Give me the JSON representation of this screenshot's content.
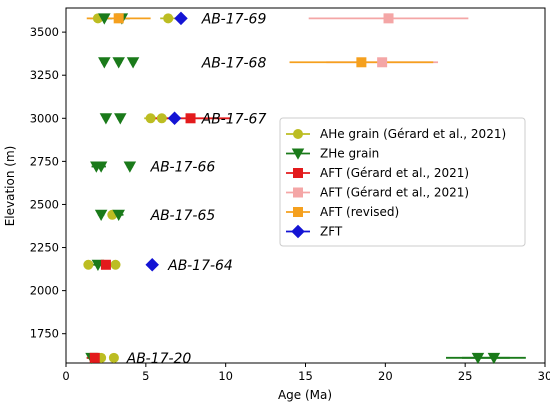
{
  "chart_data": {
    "type": "scatter",
    "xlabel": "Age (Ma)",
    "ylabel": "Elevation (m)",
    "xlim": [
      0,
      30
    ],
    "ylim": [
      1580,
      3640
    ],
    "xticks": [
      0,
      5,
      10,
      15,
      20,
      25,
      30
    ],
    "yticks": [
      1750,
      2000,
      2250,
      2500,
      2750,
      3000,
      3250,
      3500
    ],
    "grid": false,
    "legend_position": "right",
    "samples": [
      {
        "name": "AB-17-69",
        "elevation": 3580
      },
      {
        "name": "AB-17-68",
        "elevation": 3325
      },
      {
        "name": "AB-17-67",
        "elevation": 3000
      },
      {
        "name": "AB-17-66",
        "elevation": 2720
      },
      {
        "name": "AB-17-65",
        "elevation": 2440
      },
      {
        "name": "AB-17-64",
        "elevation": 2150
      },
      {
        "name": "AB-17-20",
        "elevation": 1610
      }
    ],
    "series": [
      {
        "name": "AHe grain (Gérard et al., 2021)",
        "marker": "circle",
        "color": "#bcbd22",
        "points": [
          {
            "x": 2.0,
            "y": 3580,
            "err": 0.5
          },
          {
            "x": 6.4,
            "y": 3580,
            "err": 0.5
          },
          {
            "x": 5.3,
            "y": 3000,
            "err": 0.4
          },
          {
            "x": 6.0,
            "y": 3000,
            "err": 0.4
          },
          {
            "x": 2.9,
            "y": 2440,
            "err": 0.2
          },
          {
            "x": 1.4,
            "y": 2150,
            "err": 0.3
          },
          {
            "x": 3.1,
            "y": 2150,
            "err": 0.3
          },
          {
            "x": 2.2,
            "y": 1610,
            "err": 0.3
          },
          {
            "x": 3.0,
            "y": 1610,
            "err": 0.2
          }
        ]
      },
      {
        "name": "ZHe grain",
        "marker": "triangle-down",
        "color": "#1a7a1a",
        "points": [
          {
            "x": 2.4,
            "y": 3580,
            "err": 0.5
          },
          {
            "x": 3.5,
            "y": 3580,
            "err": 0.5
          },
          {
            "x": 2.4,
            "y": 3325,
            "err": 0.2
          },
          {
            "x": 3.3,
            "y": 3325,
            "err": 0.2
          },
          {
            "x": 4.2,
            "y": 3325,
            "err": 0.2
          },
          {
            "x": 2.5,
            "y": 3000,
            "err": 0.2
          },
          {
            "x": 3.4,
            "y": 3000,
            "err": 0.2
          },
          {
            "x": 1.9,
            "y": 2720,
            "err": 0.3
          },
          {
            "x": 2.2,
            "y": 2720,
            "err": 0.3
          },
          {
            "x": 4.0,
            "y": 2720,
            "err": 0.2
          },
          {
            "x": 2.2,
            "y": 2440,
            "err": 0.2
          },
          {
            "x": 3.3,
            "y": 2440,
            "err": 0.3
          },
          {
            "x": 2.0,
            "y": 2150,
            "err": 0.3
          },
          {
            "x": 1.6,
            "y": 1610,
            "err": 0.3
          },
          {
            "x": 25.8,
            "y": 1610,
            "err": 2.0
          },
          {
            "x": 26.8,
            "y": 1610,
            "err": 2.0
          }
        ]
      },
      {
        "name": "AFT (Gérard et al., 2021)",
        "marker": "square",
        "color": "#e31a1c",
        "points": [
          {
            "x": 7.8,
            "y": 3000,
            "err": 2.5
          },
          {
            "x": 2.5,
            "y": 2150,
            "err": 0.7
          },
          {
            "x": 1.8,
            "y": 1610,
            "err": 0.5
          }
        ]
      },
      {
        "name": "AFT (Gérard et al., 2021)",
        "marker": "square",
        "color": "#f4a6a6",
        "points": [
          {
            "x": 20.2,
            "y": 3580,
            "err": 5.0
          },
          {
            "x": 19.8,
            "y": 3325,
            "err": 3.5
          }
        ]
      },
      {
        "name": "AFT (revised)",
        "marker": "square",
        "color": "#f5a01e",
        "points": [
          {
            "x": 3.3,
            "y": 3580,
            "err": 2.0
          },
          {
            "x": 18.5,
            "y": 3325,
            "err": 4.5
          }
        ]
      },
      {
        "name": "ZFT",
        "marker": "diamond",
        "color": "#1414d4",
        "points": [
          {
            "x": 7.2,
            "y": 3580,
            "err": 0
          },
          {
            "x": 6.8,
            "y": 3000,
            "err": 0
          },
          {
            "x": 5.4,
            "y": 2150,
            "err": 0
          }
        ]
      }
    ]
  }
}
